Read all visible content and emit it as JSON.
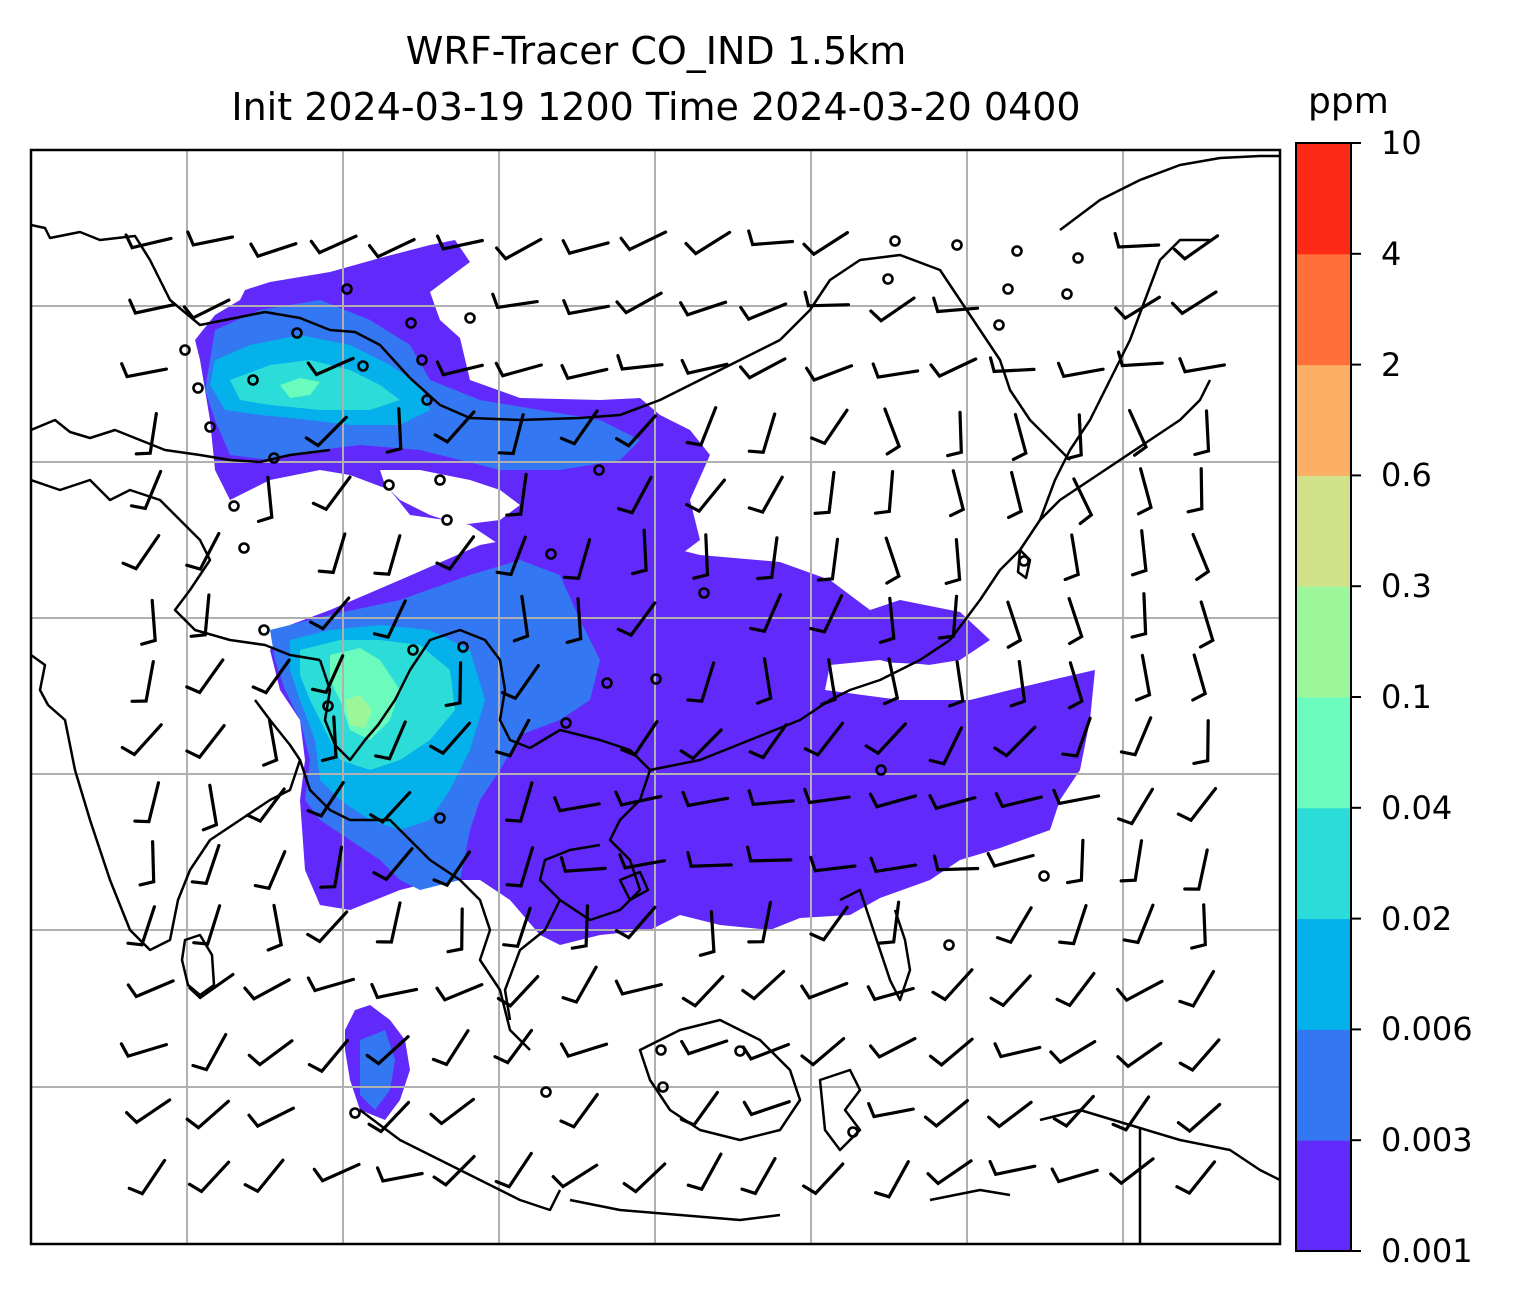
{
  "title": {
    "line1": "WRF-Tracer CO_IND 1.5km",
    "line2": "Init 2024-03-19 1200 Time 2024-03-20 0400"
  },
  "colorbar": {
    "unit": "ppm",
    "levels": [
      "0.001",
      "0.003",
      "0.006",
      "0.02",
      "0.04",
      "0.1",
      "0.3",
      "0.6",
      "2",
      "4",
      "10"
    ],
    "colors": [
      "#6229fb",
      "#3477f2",
      "#04b1ea",
      "#2bdcd8",
      "#6bfcbd",
      "#9cf79a",
      "#d1e28b",
      "#fdb065",
      "#fe6f3a",
      "#fb2916"
    ]
  },
  "map": {
    "region": "South and Southeast Asia",
    "features": [
      "coastlines",
      "country borders",
      "lat-lon gridlines",
      "wind barbs",
      "calm wind circles",
      "CO_IND tracer concentration field"
    ],
    "gridlines": true,
    "colors": {
      "coast": "#000000",
      "grid": "#b0b0b0",
      "barb": "#000000"
    }
  }
}
